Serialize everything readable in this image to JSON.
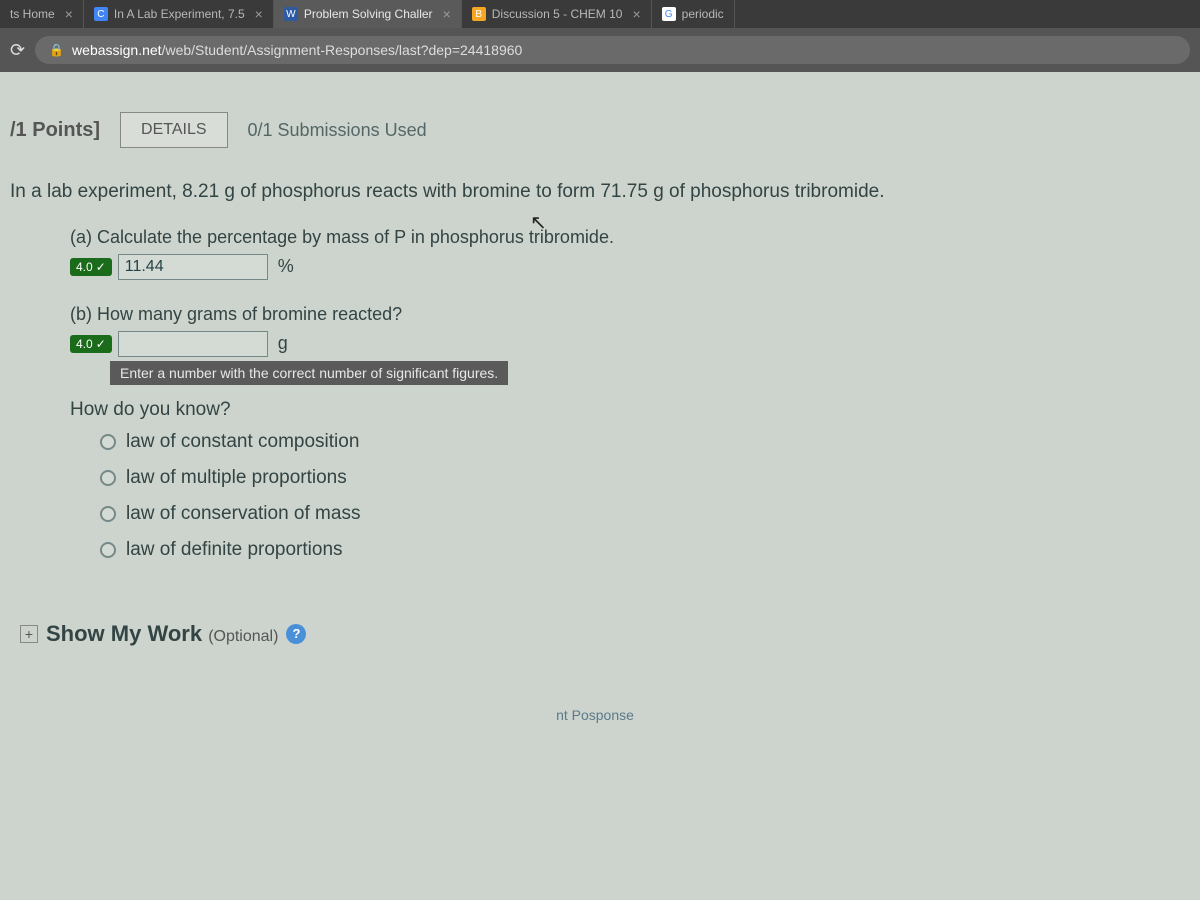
{
  "tabs": {
    "t0": {
      "title": "ts Home"
    },
    "t1": {
      "title": "In A Lab Experiment, 7.5"
    },
    "t2": {
      "title": "Problem Solving Challer"
    },
    "t3": {
      "title": "Discussion 5 - CHEM 10"
    },
    "t4": {
      "title": "periodic"
    }
  },
  "url": {
    "domain": "webassign.net",
    "path": "/web/Student/Assignment-Responses/last?dep=24418960"
  },
  "header": {
    "points": "/1 Points]",
    "details": "DETAILS",
    "submissions": "0/1 Submissions Used"
  },
  "question": {
    "text": "In a lab experiment, 8.21 g of phosphorus reacts with bromine to form 71.75 g of phosphorus tribromide.",
    "part_a": {
      "label": "(a) Calculate the percentage by mass of P in phosphorus tribromide.",
      "score": "4.0",
      "value": "11.44",
      "unit": "%"
    },
    "part_b": {
      "label": "(b) How many grams of bromine reacted?",
      "score": "4.0",
      "value": "",
      "unit": "g",
      "hint": "Enter a number with the correct number of significant figures.",
      "sub_q": "How do you know?",
      "options": {
        "o1": "law of constant composition",
        "o2": "law of multiple proportions",
        "o3": "law of conservation of mass",
        "o4": "law of definite proportions"
      }
    }
  },
  "show_work": {
    "label": "Show My Work",
    "optional": "(Optional)"
  },
  "bottom": "nt Posponse"
}
